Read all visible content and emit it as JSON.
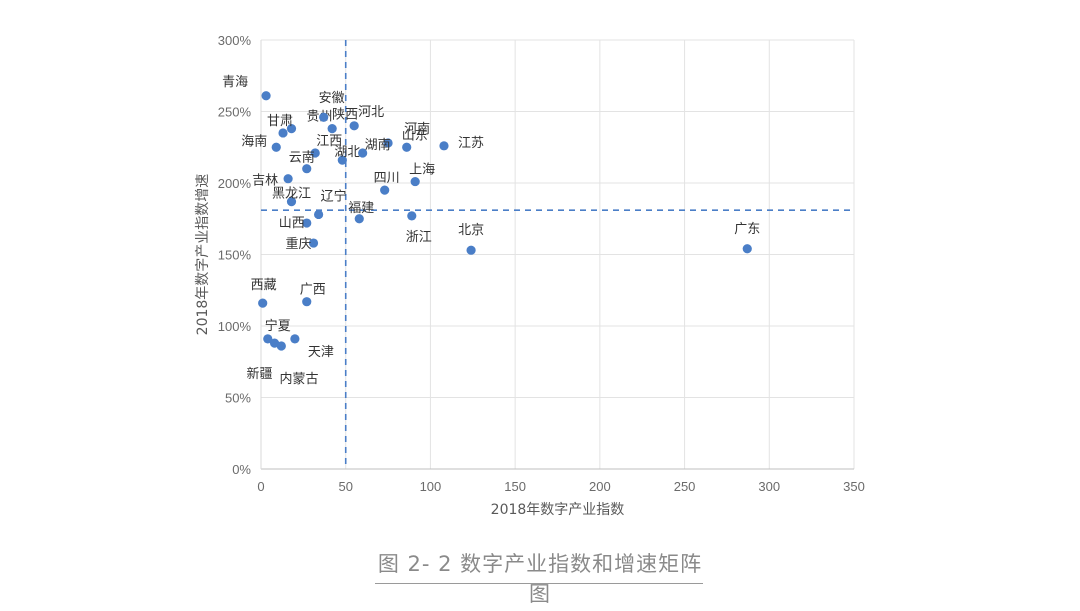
{
  "caption": "图 2- 2 数字产业指数和增速矩阵图",
  "chart_data": {
    "type": "scatter",
    "title": "",
    "xlabel": "2018年数字产业指数",
    "ylabel": "2018年数字产业指数增速",
    "xlim": [
      0,
      350
    ],
    "ylim": [
      0,
      300
    ],
    "x_ticks": [
      0,
      50,
      100,
      150,
      200,
      250,
      300,
      350
    ],
    "y_ticks": [
      0,
      50,
      100,
      150,
      200,
      250,
      300
    ],
    "y_tick_suffix": "%",
    "grid": true,
    "reference_lines": {
      "x": 50,
      "y": 181
    },
    "point_color": "#4a7ec7",
    "ref_line_color": "#4a7ec7",
    "points": [
      {
        "label": "青海",
        "x": 3,
        "y": 261
      },
      {
        "label": "贵州",
        "x": 18,
        "y": 238
      },
      {
        "label": "安徽",
        "x": 37,
        "y": 246
      },
      {
        "label": "甘肃",
        "x": 13,
        "y": 235
      },
      {
        "label": "陕西",
        "x": 42,
        "y": 238
      },
      {
        "label": "河北",
        "x": 55,
        "y": 240
      },
      {
        "label": "河南",
        "x": 75,
        "y": 228
      },
      {
        "label": "海南",
        "x": 9,
        "y": 225
      },
      {
        "label": "江西",
        "x": 32,
        "y": 221
      },
      {
        "label": "湖北",
        "x": 48,
        "y": 216
      },
      {
        "label": "湖南",
        "x": 60,
        "y": 221
      },
      {
        "label": "山东",
        "x": 86,
        "y": 225
      },
      {
        "label": "江苏",
        "x": 108,
        "y": 226
      },
      {
        "label": "云南",
        "x": 27,
        "y": 210
      },
      {
        "label": "吉林",
        "x": 16,
        "y": 203
      },
      {
        "label": "黑龙江",
        "x": 18,
        "y": 187
      },
      {
        "label": "四川",
        "x": 73,
        "y": 195
      },
      {
        "label": "上海",
        "x": 91,
        "y": 201
      },
      {
        "label": "辽宁",
        "x": 34,
        "y": 178
      },
      {
        "label": "福建",
        "x": 58,
        "y": 175
      },
      {
        "label": "山西",
        "x": 27,
        "y": 172
      },
      {
        "label": "浙江",
        "x": 89,
        "y": 177
      },
      {
        "label": "重庆",
        "x": 31,
        "y": 158
      },
      {
        "label": "北京",
        "x": 124,
        "y": 153
      },
      {
        "label": "广东",
        "x": 287,
        "y": 154
      },
      {
        "label": "西藏",
        "x": 1,
        "y": 116
      },
      {
        "label": "广西",
        "x": 27,
        "y": 117
      },
      {
        "label": "宁夏",
        "x": 4,
        "y": 91
      },
      {
        "label": "新疆",
        "x": 8,
        "y": 88
      },
      {
        "label": "",
        "x": 12,
        "y": 86
      },
      {
        "label": "天津",
        "x": 20,
        "y": 91
      },
      {
        "label": "内蒙古",
        "x": 0,
        "y": 0,
        "label_only": true
      }
    ]
  }
}
